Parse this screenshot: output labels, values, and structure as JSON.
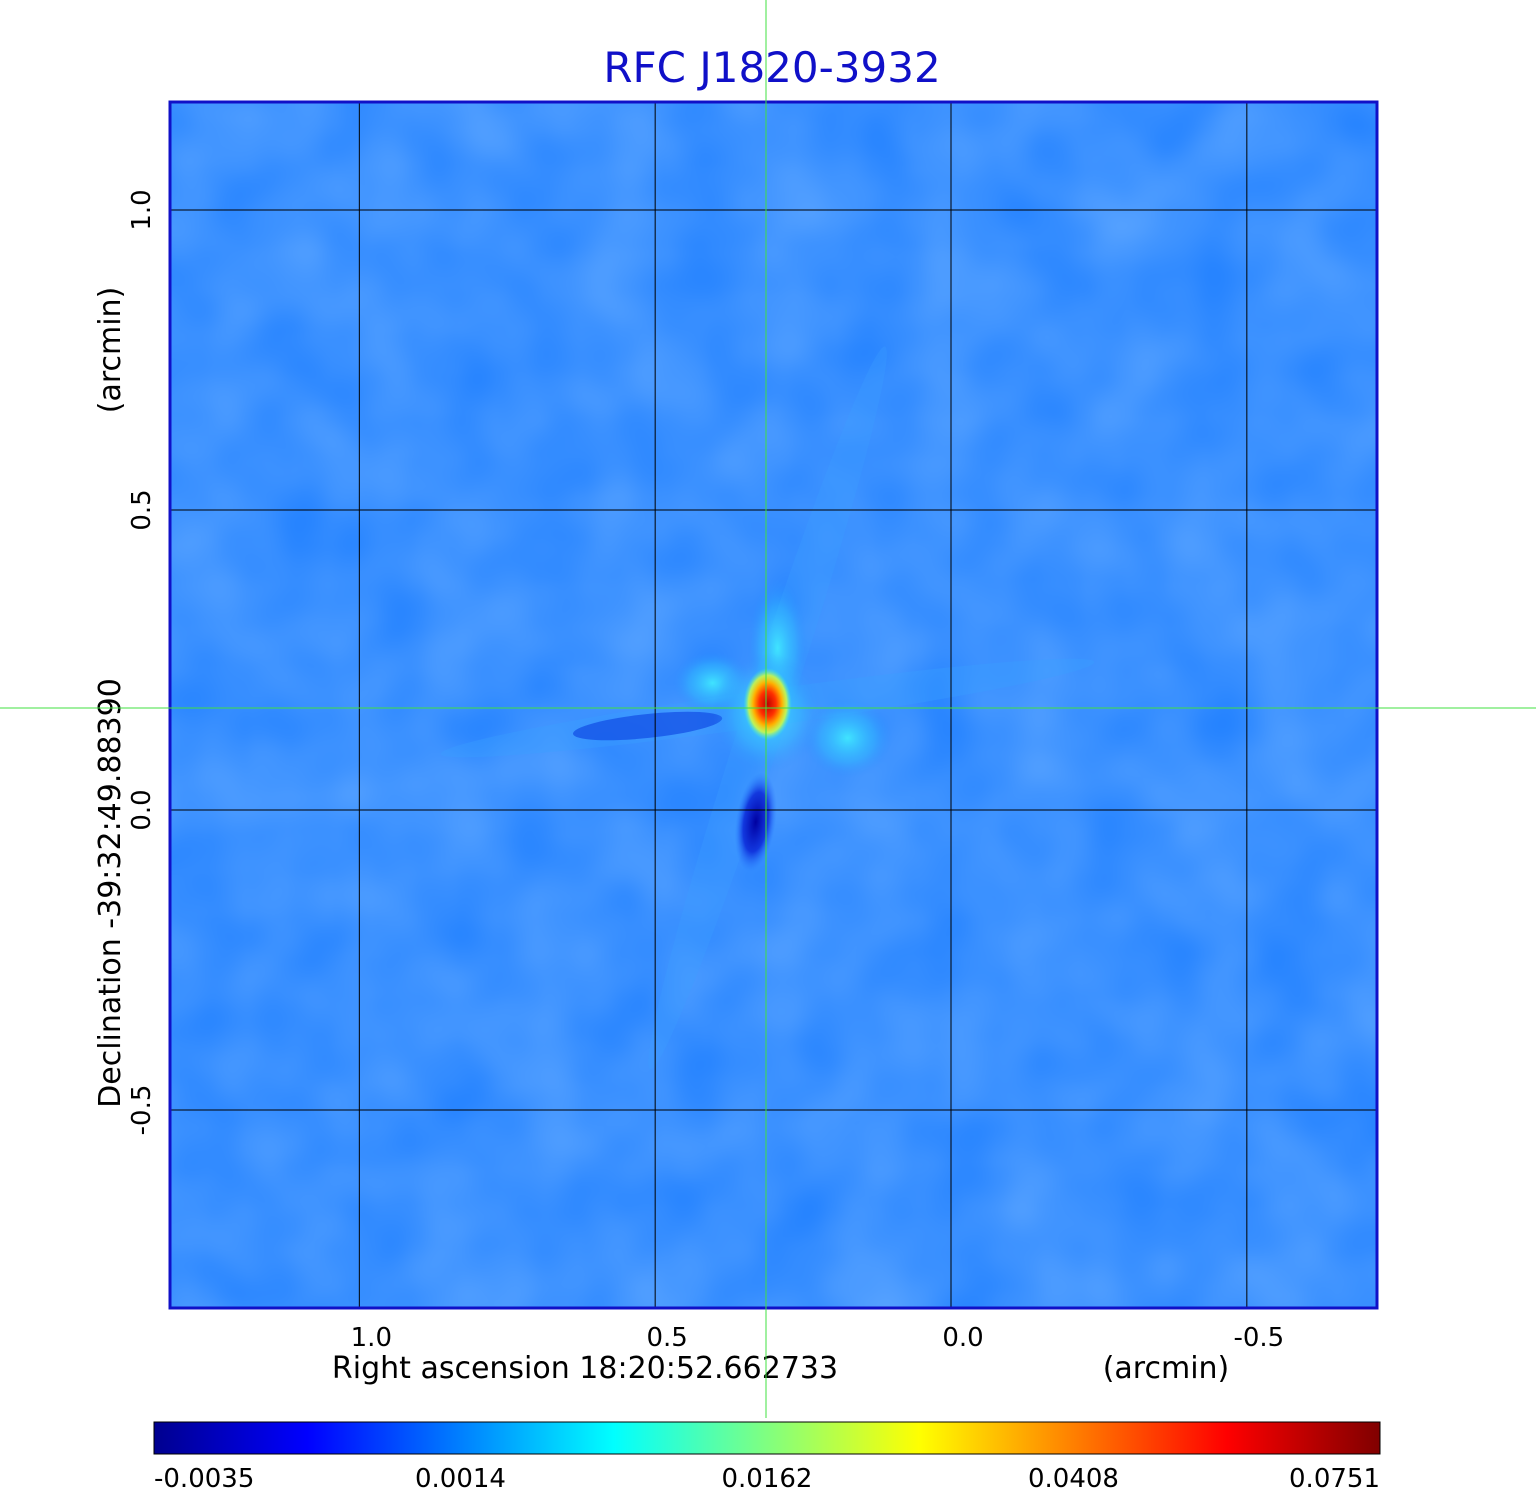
{
  "chart_data": {
    "type": "heatmap",
    "title": "RFC J1820-3932",
    "xlabel": "Right ascension  18:20:52.662733",
    "xunit": "(arcmin)",
    "ylabel": "Declination  -39:32:49.88390",
    "yunit": "(arcmin)",
    "x_ticks": [
      {
        "value": 1.0,
        "label": "1.0"
      },
      {
        "value": 0.5,
        "label": "0.5"
      },
      {
        "value": 0.0,
        "label": "0.0"
      },
      {
        "value": -0.5,
        "label": "-0.5"
      }
    ],
    "y_ticks": [
      {
        "value": 1.0,
        "label": "1.0"
      },
      {
        "value": 0.5,
        "label": "0.5"
      },
      {
        "value": 0.0,
        "label": "0.0"
      },
      {
        "value": -0.5,
        "label": "-0.5"
      }
    ],
    "xlim": [
      1.32,
      -0.72
    ],
    "ylim": [
      -0.83,
      1.18
    ],
    "grid": true,
    "crosshair": {
      "x": 0.31,
      "y": 0.17
    },
    "peak": {
      "x": 0.31,
      "y": 0.17,
      "value": 0.0751
    },
    "negative_lobe": {
      "x": 0.33,
      "y": -0.02,
      "value": -0.0035
    },
    "colorbar": {
      "colormap": "jet",
      "tick_labels": [
        "-0.0035",
        "0.0014",
        "0.0162",
        "0.0408",
        "0.0751"
      ]
    },
    "colors": {
      "title": "#1010c8",
      "frame": "#1010c8",
      "crosshair": "#40e040",
      "background": "#1f7fff"
    }
  }
}
